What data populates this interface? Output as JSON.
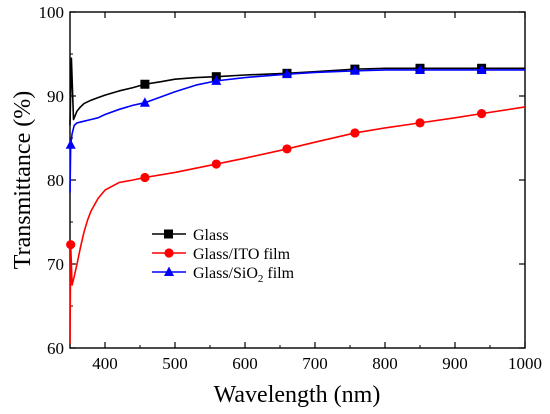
{
  "chart_data": {
    "type": "line",
    "xlabel": "Wavelength (nm)",
    "ylabel": "Transmittance (%)",
    "xlim": [
      350,
      1000
    ],
    "ylim": [
      60,
      100
    ],
    "xticks": [
      400,
      500,
      600,
      700,
      800,
      900,
      1000
    ],
    "yticks": [
      60,
      70,
      80,
      90,
      100
    ],
    "grid": false,
    "legend_position": "center-left",
    "series": [
      {
        "name": "Glass",
        "color": "#000000",
        "marker": "square",
        "x": [
          350,
          352,
          355,
          360,
          365,
          370,
          380,
          390,
          400,
          420,
          440,
          457,
          480,
          500,
          530,
          559,
          600,
          660,
          700,
          757,
          800,
          850,
          900,
          938,
          970,
          1000
        ],
        "y": [
          86.5,
          94.5,
          87.2,
          88.2,
          88.7,
          89.1,
          89.5,
          89.8,
          90.1,
          90.6,
          91.0,
          91.4,
          91.7,
          92.0,
          92.2,
          92.3,
          92.5,
          92.7,
          92.9,
          93.2,
          93.3,
          93.3,
          93.3,
          93.3,
          93.3,
          93.3
        ],
        "marker_x": [
          457,
          559,
          660,
          757,
          850,
          938
        ]
      },
      {
        "name": "Glass/ITO film",
        "color": "#ff0000",
        "marker": "circle",
        "x": [
          350,
          351,
          353,
          356,
          360,
          365,
          370,
          375,
          380,
          390,
          400,
          420,
          440,
          457,
          500,
          559,
          600,
          660,
          700,
          757,
          800,
          850,
          900,
          938,
          1000
        ],
        "y": [
          60.5,
          72.3,
          67.5,
          68.5,
          70.0,
          72.0,
          73.8,
          75.2,
          76.3,
          77.8,
          78.8,
          79.7,
          80.0,
          80.3,
          80.9,
          81.9,
          82.6,
          83.7,
          84.5,
          85.6,
          86.2,
          86.8,
          87.4,
          87.9,
          88.7
        ],
        "marker_x": [
          351,
          457,
          559,
          660,
          757,
          850,
          938
        ]
      },
      {
        "name": "Glass/SiO2 film",
        "color": "#0000ff",
        "marker": "triangle",
        "x": [
          350,
          351,
          353,
          356,
          360,
          365,
          370,
          380,
          390,
          400,
          420,
          440,
          457,
          480,
          500,
          530,
          559,
          600,
          660,
          700,
          757,
          800,
          850,
          900,
          938,
          1000
        ],
        "y": [
          78.5,
          84.2,
          85.5,
          86.5,
          86.8,
          86.9,
          87.0,
          87.2,
          87.4,
          87.8,
          88.4,
          88.9,
          89.2,
          89.9,
          90.5,
          91.3,
          91.8,
          92.2,
          92.6,
          92.8,
          93.0,
          93.1,
          93.1,
          93.1,
          93.1,
          93.1
        ],
        "marker_x": [
          351,
          457,
          559,
          660,
          757,
          850,
          938
        ]
      }
    ]
  },
  "legend": {
    "items": [
      {
        "label": "Glass",
        "sub": "",
        "tail": ""
      },
      {
        "label": "Glass/ITO film",
        "sub": "",
        "tail": ""
      },
      {
        "label": "Glass/SiO",
        "sub": "2",
        "tail": " film"
      }
    ]
  }
}
